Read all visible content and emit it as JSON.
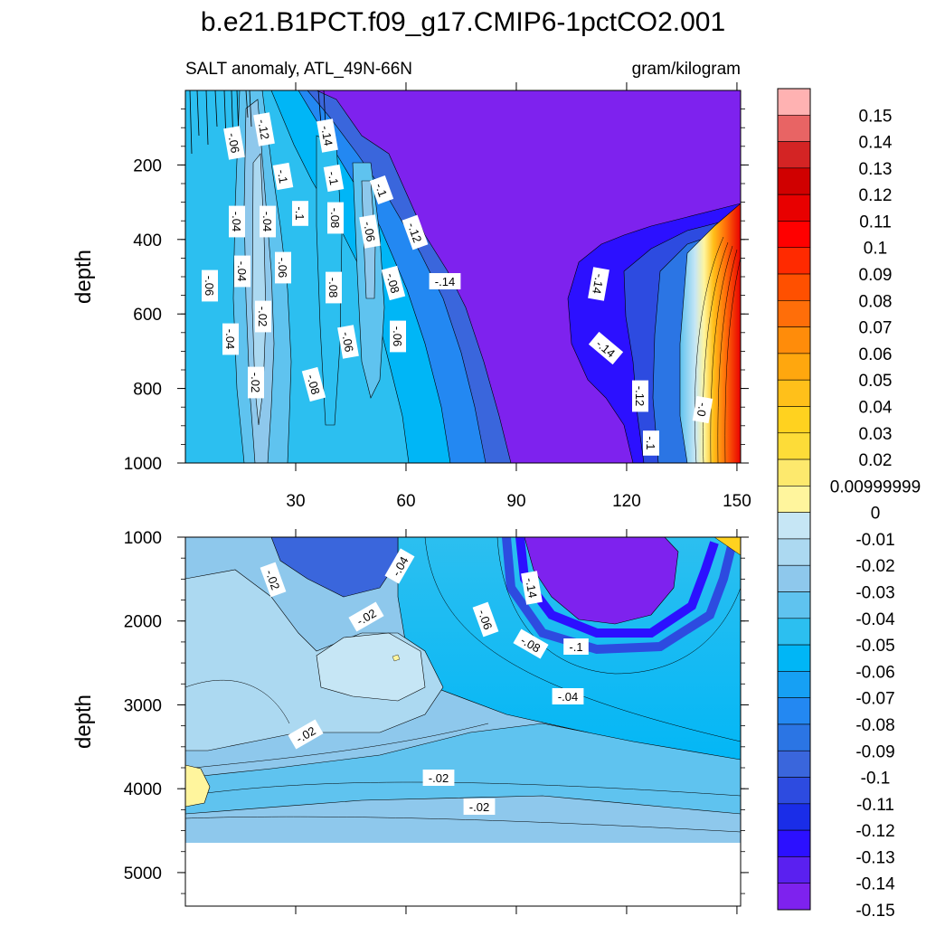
{
  "chart_data": {
    "type": "heatmap",
    "title": "b.e21.B1PCT.f09_g17.CMIP6-1pctCO2.001",
    "subtitle_left": "SALT anomaly, ATL_49N-66N",
    "subtitle_right": "gram/kilogram",
    "xlabel": "",
    "xlim": [
      0,
      151
    ],
    "xticks": [
      "30",
      "60",
      "90",
      "120",
      "150"
    ],
    "colors": {
      "neg15": "#7e22ee",
      "neg14": "#5a20f0",
      "neg13": "#2c10ff",
      "neg12": "#1a2de8",
      "neg11": "#2d4be0",
      "neg10": "#3a66dc",
      "neg09": "#2b75e4",
      "neg08": "#2388f2",
      "neg07": "#16a0f4",
      "neg06": "#00b6f6",
      "neg05": "#2cbff0",
      "neg04": "#5fc3ef",
      "neg03": "#8ec8ec",
      "neg02": "#acd9f1",
      "neg01": "#c6e6f5",
      "pos00": "#fff59d",
      "pos01": "#fde96d",
      "pos02": "#fddc38",
      "pos03": "#ffd21f",
      "pos04": "#ffc01a",
      "pos05": "#ffa70e",
      "pos06": "#ff8c0a",
      "pos07": "#ff6e09",
      "pos08": "#ff5000",
      "pos09": "#ff2a00",
      "pos10": "#ff0000",
      "pos11": "#e80000",
      "pos12": "#d00000",
      "pos13": "#d42424",
      "pos14": "#e86464",
      "pos15": "#ffb2b2"
    },
    "panels": [
      {
        "name": "upper",
        "ylabel": "depth",
        "ylim": [
          0,
          1000
        ],
        "yticks": [
          "200",
          "400",
          "600",
          "800",
          "1000"
        ],
        "contour_labels": [
          "-.06",
          "-.12",
          "-.14",
          "-.1",
          "-.1",
          "-.1",
          "-.04",
          "-.04",
          "-.1",
          "-.08",
          "-.06",
          "-.12",
          "-.06",
          "-.04",
          "-.06",
          "-.08",
          "-.08",
          "-.14",
          "-.14",
          "-.02",
          "-.04",
          "-.06",
          "-.06",
          "-.14",
          "-.02",
          "-.08",
          "-.12",
          "-.1",
          "-.0"
        ]
      },
      {
        "name": "lower",
        "ylabel": "depth",
        "ylim": [
          1000,
          5400
        ],
        "yticks": [
          "1000",
          "2000",
          "3000",
          "4000",
          "5000"
        ],
        "contour_labels": [
          "-.02",
          "-.04",
          "-.14",
          "-.02",
          "-.06",
          "-.08",
          "-.1",
          "-.04",
          "-.02",
          "-.02",
          "-.02"
        ]
      }
    ],
    "colorbar": {
      "labels": [
        "0.15",
        "0.14",
        "0.13",
        "0.12",
        "0.11",
        "0.1",
        "0.09",
        "0.08",
        "0.07",
        "0.06",
        "0.05",
        "0.04",
        "0.03",
        "0.02",
        "0.00999999",
        "0",
        "-0.01",
        "-0.02",
        "-0.03",
        "-0.04",
        "-0.05",
        "-0.06",
        "-0.07",
        "-0.08",
        "-0.09",
        "-0.1",
        "-0.11",
        "-0.12",
        "-0.13",
        "-0.14",
        "-0.15"
      ]
    }
  }
}
